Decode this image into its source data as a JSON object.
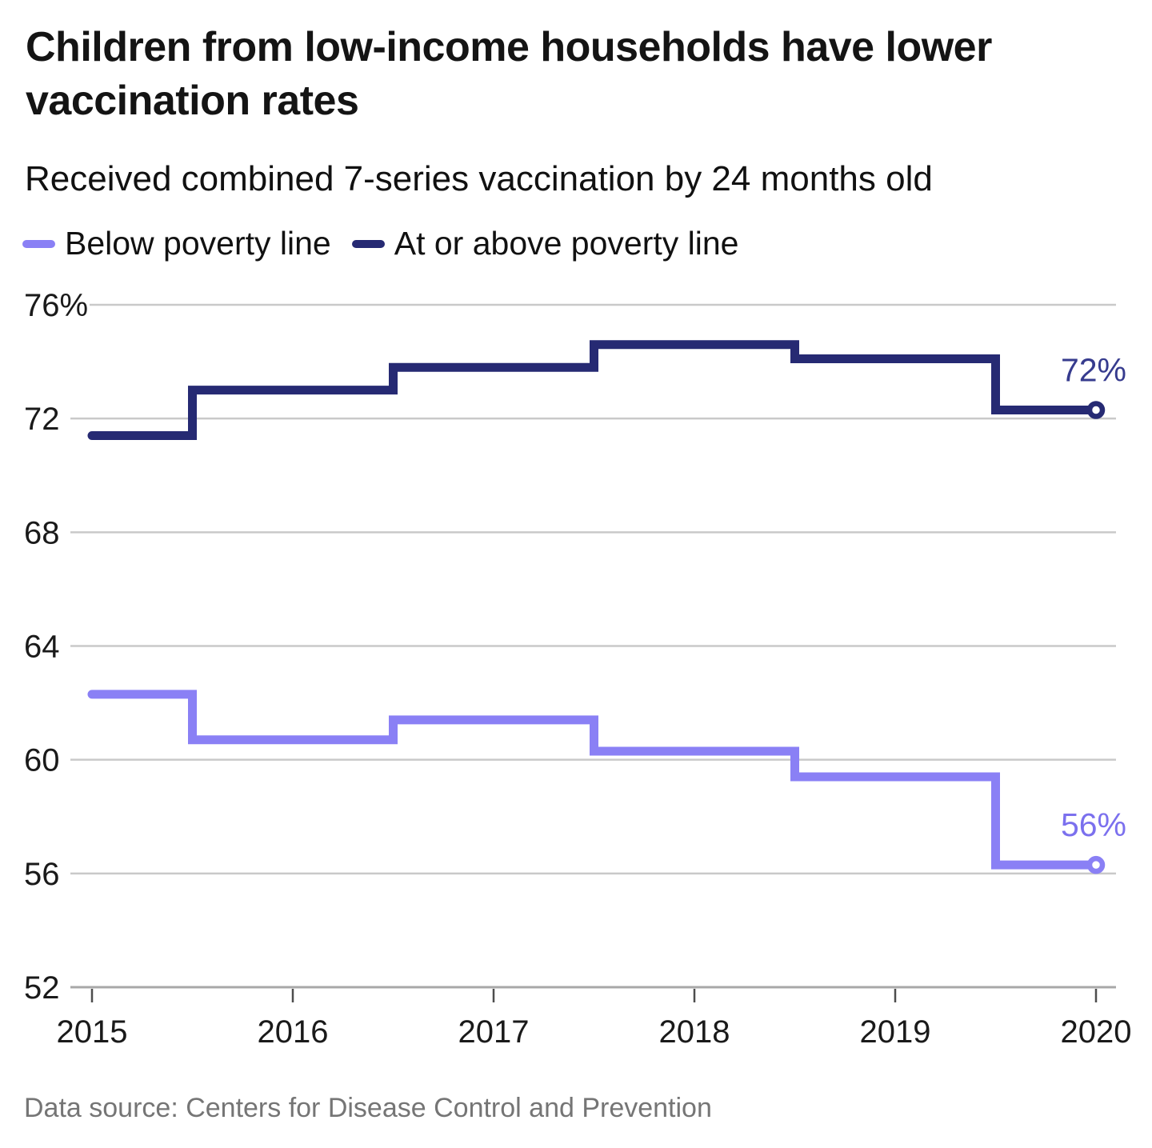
{
  "header": {
    "title": "Children from low-income households have lower vaccination rates",
    "subtitle": "Received combined 7-series vaccination by 24 months old"
  },
  "legend": {
    "items": [
      {
        "label": "Below poverty line",
        "color": "#8a80f5"
      },
      {
        "label": "At or above poverty line",
        "color": "#262a73"
      }
    ]
  },
  "footer": {
    "source": "Data source: Centers for Disease Control and Prevention"
  },
  "colors": {
    "gridline": "#c9c9c9",
    "axis_line": "#a8a8a8",
    "tick": "#4d4d4d",
    "axis_text": "#1a1a1a",
    "background": "#ffffff"
  },
  "chart_data": {
    "type": "line",
    "subtype": "step-center",
    "title": "Children from low-income households have lower vaccination rates",
    "subtitle": "Received combined 7-series vaccination by 24 months old",
    "xlabel": "",
    "ylabel": "",
    "xlim": [
      2015,
      2020
    ],
    "ylim": [
      52,
      76
    ],
    "grid": true,
    "legend_position": "top",
    "x": [
      2015,
      2016,
      2017,
      2018,
      2019,
      2020
    ],
    "x_tick_labels": [
      "2015",
      "2016",
      "2017",
      "2018",
      "2019",
      "2020"
    ],
    "y_ticks": [
      {
        "value": 76,
        "label": "76%"
      },
      {
        "value": 72,
        "label": "72"
      },
      {
        "value": 68,
        "label": "68"
      },
      {
        "value": 64,
        "label": "64"
      },
      {
        "value": 60,
        "label": "60"
      },
      {
        "value": 56,
        "label": "56"
      },
      {
        "value": 52,
        "label": "52"
      }
    ],
    "series": [
      {
        "name": "At or above poverty line",
        "color": "#262a73",
        "label_color": "#363b8e",
        "end_label": "72%",
        "values": [
          71.4,
          73.0,
          73.8,
          74.6,
          74.1,
          72.3
        ]
      },
      {
        "name": "Below poverty line",
        "color": "#8a80f5",
        "label_color": "#7b70ee",
        "end_label": "56%",
        "values": [
          62.3,
          60.7,
          61.4,
          60.3,
          59.4,
          56.3
        ]
      }
    ]
  }
}
